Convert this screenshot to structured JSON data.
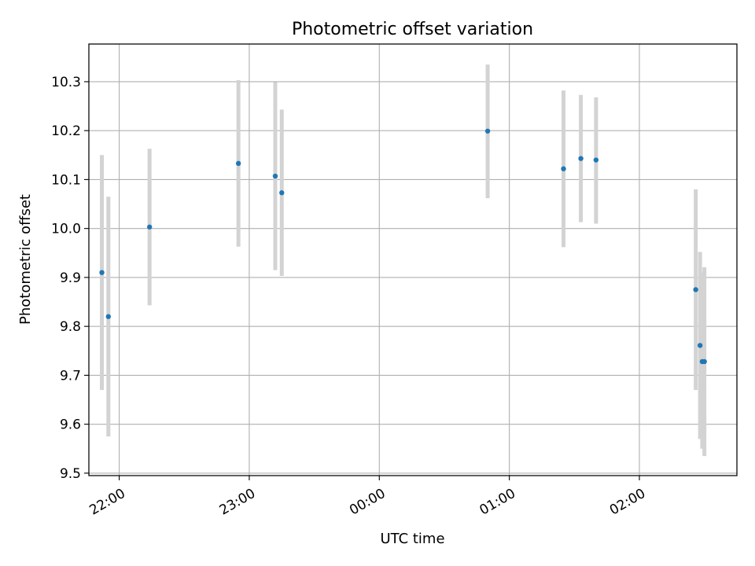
{
  "chart_data": {
    "type": "scatter",
    "title": "Photometric offset variation",
    "xlabel": "UTC time",
    "ylabel": "Photometric offset",
    "grid": true,
    "legend": "none",
    "x_axis_kind": "time",
    "ylim": [
      9.495,
      10.377
    ],
    "xlim": [
      "21:46",
      "02:45"
    ],
    "y_ticks": [
      9.5,
      9.6,
      9.7,
      9.8,
      9.9,
      10.0,
      10.1,
      10.2,
      10.3
    ],
    "y_tick_labels": [
      "9.5",
      "9.6",
      "9.7",
      "9.8",
      "9.9",
      "10.0",
      "10.1",
      "10.2",
      "10.3"
    ],
    "x_ticks": [
      "22:00",
      "23:00",
      "00:00",
      "01:00",
      "02:00"
    ],
    "x_tick_labels": [
      "22:00",
      "23:00",
      "00:00",
      "01:00",
      "02:00"
    ],
    "colors": {
      "point": "#1f77b4",
      "errorbar": "#d3d3d3",
      "grid": "#b0b0b0"
    },
    "series": [
      {
        "points": [
          {
            "time": "21:52",
            "y": 9.91,
            "y_low": 9.67,
            "y_high": 10.15
          },
          {
            "time": "21:55",
            "y": 9.82,
            "y_low": 9.575,
            "y_high": 10.065
          },
          {
            "time": "22:14",
            "y": 10.003,
            "y_low": 9.843,
            "y_high": 10.163
          },
          {
            "time": "22:55",
            "y": 10.133,
            "y_low": 9.963,
            "y_high": 10.303
          },
          {
            "time": "23:12",
            "y": 10.107,
            "y_low": 9.915,
            "y_high": 10.299
          },
          {
            "time": "23:15",
            "y": 10.073,
            "y_low": 9.903,
            "y_high": 10.243
          },
          {
            "time": "00:50",
            "y": 10.199,
            "y_low": 10.062,
            "y_high": 10.335
          },
          {
            "time": "01:25",
            "y": 10.122,
            "y_low": 9.962,
            "y_high": 10.282
          },
          {
            "time": "01:33",
            "y": 10.143,
            "y_low": 10.013,
            "y_high": 10.273
          },
          {
            "time": "01:40",
            "y": 10.14,
            "y_low": 10.01,
            "y_high": 10.268
          },
          {
            "time": "02:26",
            "y": 9.875,
            "y_low": 9.67,
            "y_high": 10.08
          },
          {
            "time": "02:28",
            "y": 9.761,
            "y_low": 9.57,
            "y_high": 9.952
          },
          {
            "time": "02:29",
            "y": 9.728,
            "y_low": 9.55,
            "y_high": 9.91
          },
          {
            "time": "02:30",
            "y": 9.728,
            "y_low": 9.535,
            "y_high": 9.921
          }
        ]
      }
    ]
  }
}
